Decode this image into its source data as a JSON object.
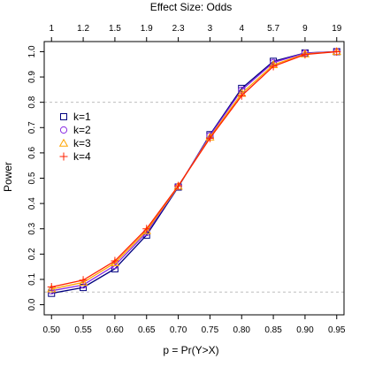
{
  "chart_data": {
    "type": "line",
    "title": "",
    "xlabel": "p = Pr(Y>X)",
    "ylabel": "Power",
    "top_axis_title": "Effect Size: Odds",
    "x": [
      0.5,
      0.55,
      0.6,
      0.65,
      0.7,
      0.75,
      0.8,
      0.85,
      0.9,
      0.95
    ],
    "x_tick_labels": [
      "0.50",
      "0.55",
      "0.60",
      "0.65",
      "0.70",
      "0.75",
      "0.80",
      "0.85",
      "0.90",
      "0.95"
    ],
    "top_tick_labels": [
      "1",
      "1.2",
      "1.5",
      "1.9",
      "2.3",
      "3",
      "4",
      "5.7",
      "9",
      "19"
    ],
    "y_ticks": [
      0.0,
      0.1,
      0.2,
      0.3,
      0.4,
      0.5,
      0.6,
      0.7,
      0.8,
      0.9,
      1.0
    ],
    "y_tick_labels": [
      "0.0",
      "0.1",
      "0.2",
      "0.3",
      "0.4",
      "0.5",
      "0.6",
      "0.7",
      "0.8",
      "0.9",
      "1.0"
    ],
    "xlim": [
      0.4885,
      0.9615
    ],
    "ylim": [
      -0.04,
      1.04
    ],
    "reference_lines_y": [
      0.05,
      0.8
    ],
    "legend_position": "left",
    "series": [
      {
        "name": "k=1",
        "color": "#000080",
        "marker": "square",
        "values": [
          0.045,
          0.068,
          0.142,
          0.275,
          0.465,
          0.672,
          0.855,
          0.962,
          0.995,
          1.0
        ]
      },
      {
        "name": "k=2",
        "color": "#8a2be2",
        "marker": "circle",
        "values": [
          0.055,
          0.078,
          0.155,
          0.285,
          0.467,
          0.668,
          0.848,
          0.957,
          0.994,
          1.0
        ]
      },
      {
        "name": "k=3",
        "color": "#ffa500",
        "marker": "triangle",
        "values": [
          0.062,
          0.088,
          0.165,
          0.292,
          0.468,
          0.662,
          0.835,
          0.948,
          0.991,
          1.0
        ]
      },
      {
        "name": "k=4",
        "color": "#ff2000",
        "marker": "plus",
        "values": [
          0.07,
          0.097,
          0.173,
          0.3,
          0.47,
          0.658,
          0.826,
          0.942,
          0.989,
          1.0
        ]
      }
    ]
  }
}
